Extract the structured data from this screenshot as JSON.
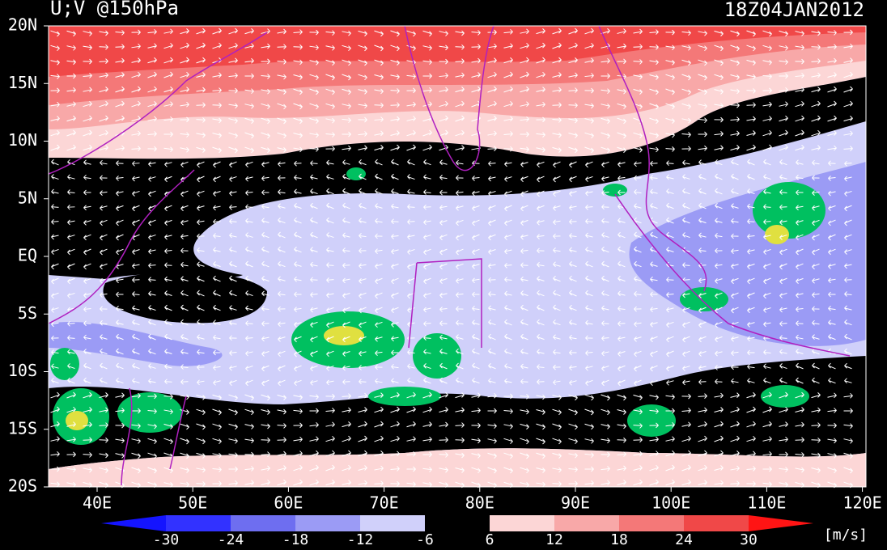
{
  "header": {
    "title": "U;V @150hPa",
    "time": "18Z04JAN2012"
  },
  "map": {
    "lat_labels": [
      "20N",
      "15N",
      "10N",
      "5N",
      "EQ",
      "5S",
      "10S",
      "15S",
      "20S"
    ],
    "lon_labels": [
      "40E",
      "50E",
      "60E",
      "70E",
      "80E",
      "90E",
      "100E",
      "110E",
      "120E"
    ]
  },
  "colorbar": {
    "levels": [
      -30,
      -24,
      -18,
      -12,
      -6,
      6,
      12,
      18,
      24,
      30
    ],
    "colors": [
      "#1414ff",
      "#3232ff",
      "#6e6ef0",
      "#9b9bf5",
      "#d0d0fa",
      "#000000",
      "#fcd6d6",
      "#f8a8a8",
      "#f47878",
      "#f04848",
      "#ff1414"
    ],
    "units": "[m/s]"
  }
}
